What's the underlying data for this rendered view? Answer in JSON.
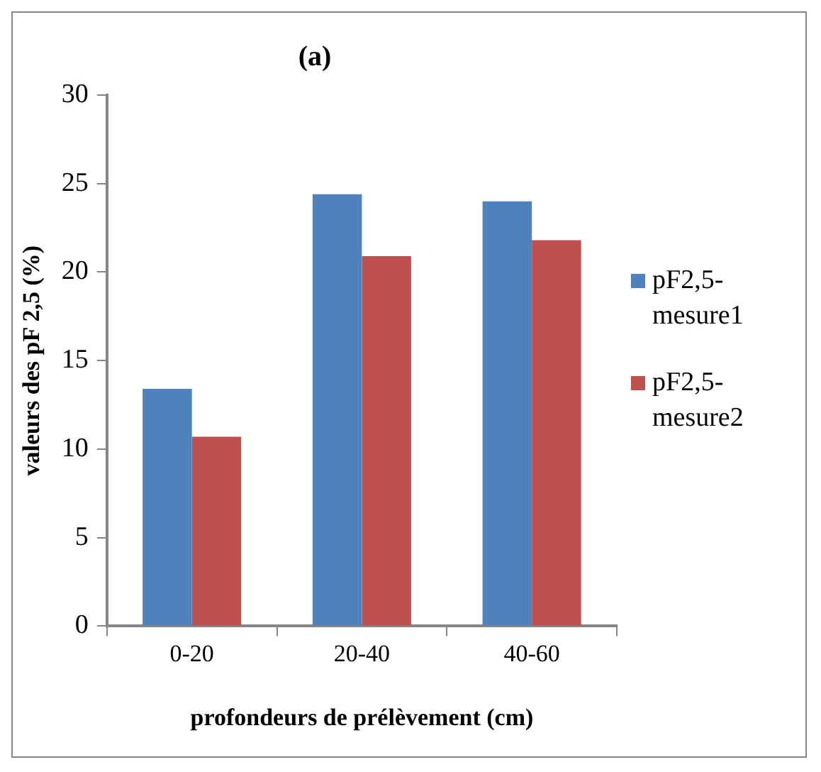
{
  "chart_data": {
    "type": "bar",
    "title": "(a)",
    "xlabel": "profondeurs de prélèvement (cm)",
    "ylabel": "valeurs des pF 2,5 (%)",
    "categories": [
      "0-20",
      "20-40",
      "40-60"
    ],
    "series": [
      {
        "name": "pF2,5-mesure1",
        "color": "#4f81bd",
        "values": [
          13.4,
          24.4,
          24.0
        ]
      },
      {
        "name": "pF2,5-mesure2",
        "color": "#c0504d",
        "values": [
          10.7,
          20.9,
          21.8
        ]
      }
    ],
    "ylim": [
      0,
      30
    ],
    "yticks": [
      0,
      5,
      10,
      15,
      20,
      25,
      30
    ],
    "grid": false,
    "legend": "right"
  }
}
